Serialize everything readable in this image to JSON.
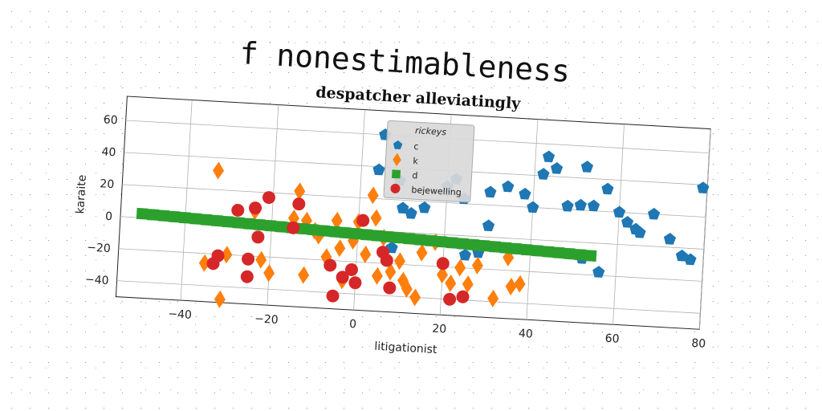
{
  "suptitle": "f nonestimableness",
  "chart_data": {
    "type": "scatter",
    "title": "despatcher alleviatingly",
    "xlabel": "litigationist",
    "ylabel": "karaite",
    "xlim": [
      -55,
      80
    ],
    "ylim": [
      -50,
      75
    ],
    "xticks": [
      -40,
      -20,
      0,
      20,
      40,
      60,
      80
    ],
    "yticks": [
      -40,
      -20,
      0,
      20,
      40,
      60
    ],
    "grid": true,
    "legend": {
      "title": "rickeys",
      "placement": "upper-center",
      "entries": [
        "c",
        "k",
        "d",
        "bejewelling"
      ]
    },
    "series": [
      {
        "name": "c",
        "marker": "pentagon",
        "color": "#1f77b4",
        "points": [
          [
            5,
            60
          ],
          [
            4,
            38
          ],
          [
            9,
            32
          ],
          [
            24,
            23
          ],
          [
            30,
            28
          ],
          [
            34,
            32
          ],
          [
            38,
            28
          ],
          [
            40,
            20
          ],
          [
            42,
            41
          ],
          [
            43,
            52
          ],
          [
            45,
            45
          ],
          [
            48,
            22
          ],
          [
            51,
            23
          ],
          [
            52,
            47
          ],
          [
            54,
            23
          ],
          [
            57,
            34
          ],
          [
            60,
            20
          ],
          [
            62,
            14
          ],
          [
            64,
            10
          ],
          [
            65,
            8
          ],
          [
            68,
            20
          ],
          [
            72,
            5
          ],
          [
            75,
            -5
          ],
          [
            77,
            -7
          ],
          [
            79,
            38
          ],
          [
            52,
            -10
          ],
          [
            56,
            -18
          ],
          [
            28,
            -10
          ],
          [
            25,
            -12
          ],
          [
            30,
            7
          ],
          [
            8,
            -10
          ],
          [
            12,
            12
          ],
          [
            15,
            16
          ],
          [
            10,
            15
          ],
          [
            20,
            30
          ],
          [
            22,
            35
          ]
        ]
      },
      {
        "name": "k",
        "marker": "diamond",
        "color": "#ff7f0e",
        "points": [
          [
            -33,
            32
          ],
          [
            -35,
            -26
          ],
          [
            -31,
            -48
          ],
          [
            -30,
            -20
          ],
          [
            -22,
            -22
          ],
          [
            -14,
            22
          ],
          [
            -12,
            4
          ],
          [
            -10,
            -2
          ],
          [
            -9,
            -5
          ],
          [
            -7,
            -18
          ],
          [
            -5,
            5
          ],
          [
            -3,
            -32
          ],
          [
            -4,
            -12
          ],
          [
            -1,
            -7
          ],
          [
            2,
            -15
          ],
          [
            3,
            22
          ],
          [
            4,
            8
          ],
          [
            5,
            -28
          ],
          [
            6,
            -4
          ],
          [
            8,
            -25
          ],
          [
            10,
            -18
          ],
          [
            11,
            -30
          ],
          [
            12,
            -35
          ],
          [
            14,
            -40
          ],
          [
            15,
            -12
          ],
          [
            18,
            -5
          ],
          [
            20,
            -25
          ],
          [
            22,
            -30
          ],
          [
            24,
            -20
          ],
          [
            26,
            -30
          ],
          [
            28,
            -18
          ],
          [
            32,
            -38
          ],
          [
            35,
            -12
          ],
          [
            36,
            -30
          ],
          [
            38,
            -28
          ],
          [
            -20,
            -30
          ],
          [
            -15,
            5
          ],
          [
            -12,
            -30
          ],
          [
            -24,
            8
          ],
          [
            0,
            5
          ]
        ]
      },
      {
        "name": "d",
        "marker": "square",
        "color": "#2ca02c",
        "line_from": [
          -50,
          2.5
        ],
        "line_to": [
          54,
          -8
        ]
      },
      {
        "name": "bejewelling",
        "marker": "circle",
        "color": "#d62728",
        "points": [
          [
            -33,
            -26
          ],
          [
            -32,
            -21
          ],
          [
            -25,
            -22
          ],
          [
            -25,
            -33
          ],
          [
            -23,
            -8
          ],
          [
            -21,
            17
          ],
          [
            -24,
            10
          ],
          [
            -15,
            -1
          ],
          [
            -14,
            14
          ],
          [
            -6,
            -23
          ],
          [
            -5,
            -42
          ],
          [
            -3,
            -30
          ],
          [
            -1,
            -25
          ],
          [
            0,
            -33
          ],
          [
            1,
            6
          ],
          [
            6,
            -13
          ],
          [
            7,
            -18
          ],
          [
            8,
            -35
          ],
          [
            20,
            -18
          ],
          [
            22,
            -40
          ],
          [
            25,
            -38
          ],
          [
            -28,
            8
          ]
        ]
      }
    ]
  }
}
